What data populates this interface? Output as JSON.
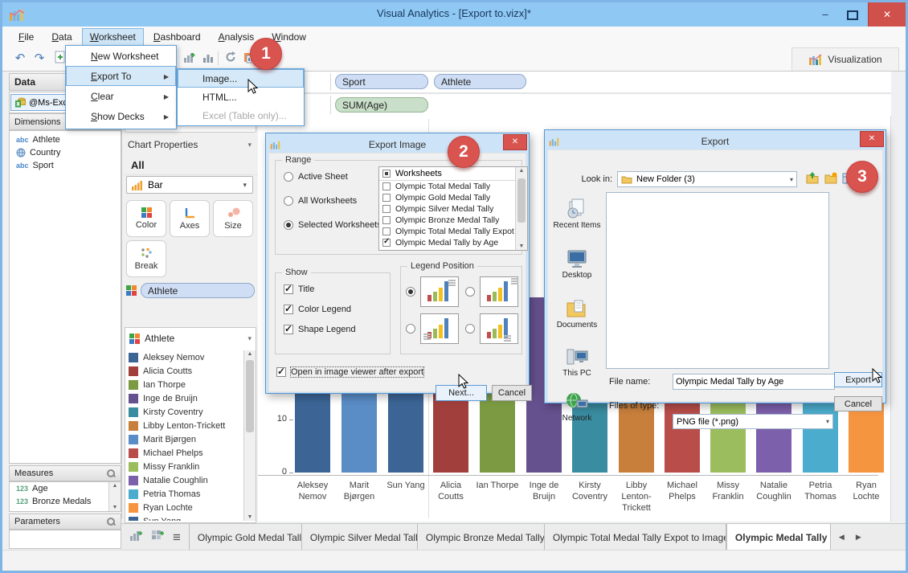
{
  "window": {
    "title": "Visual Analytics - [Export to.vizx]*"
  },
  "menu": {
    "items": [
      "File",
      "Data",
      "Worksheet",
      "Dashboard",
      "Analysis",
      "Window"
    ],
    "active": "Worksheet"
  },
  "worksheet_menu": {
    "items": [
      {
        "label": "New Worksheet",
        "submenu": false,
        "highlighted": false
      },
      {
        "label": "Export To",
        "submenu": true,
        "highlighted": true
      },
      {
        "label": "Clear",
        "submenu": true,
        "highlighted": false
      },
      {
        "label": "Show Decks",
        "submenu": true,
        "highlighted": false
      }
    ]
  },
  "export_submenu": {
    "items": [
      {
        "label": "Image...",
        "highlighted": true,
        "disabled": false
      },
      {
        "label": "HTML...",
        "highlighted": false,
        "disabled": false
      },
      {
        "label": "Excel (Table only)...",
        "highlighted": false,
        "disabled": true
      }
    ]
  },
  "toolbar": {
    "visualization_label": "Visualization"
  },
  "badges": [
    "1",
    "2",
    "3"
  ],
  "data_panel": {
    "title": "Data",
    "connection": "@Ms-Exc...",
    "dimensions": {
      "title": "Dimensions",
      "items": [
        {
          "type": "abc",
          "label": "Athlete"
        },
        {
          "type": "globe",
          "label": "Country"
        },
        {
          "type": "abc",
          "label": "Sport"
        }
      ]
    },
    "measures": {
      "title": "Measures",
      "items": [
        {
          "type": "123",
          "label": "Age"
        },
        {
          "type": "123",
          "label": "Bronze Medals"
        }
      ]
    },
    "parameters": {
      "title": "Parameters"
    }
  },
  "chart_properties": {
    "title": "Chart Properties",
    "scope": "All",
    "chart_type": "Bar",
    "buttons": [
      "Color",
      "Axes",
      "Size",
      "Break"
    ],
    "color_field": "Athlete",
    "legend": {
      "title": "Athlete",
      "items": [
        {
          "label": "Aleksey Nemov",
          "color": "#3c6596"
        },
        {
          "label": "Alicia Coutts",
          "color": "#a03f3c"
        },
        {
          "label": "Ian Thorpe",
          "color": "#7b9a42"
        },
        {
          "label": "Inge de Bruijn",
          "color": "#66518f"
        },
        {
          "label": "Kirsty Coventry",
          "color": "#3a8ca0"
        },
        {
          "label": "Libby Lenton-Trickett",
          "color": "#c87f3c"
        },
        {
          "label": "Marit Bjørgen",
          "color": "#5a8cc6"
        },
        {
          "label": "Michael Phelps",
          "color": "#b84d4a"
        },
        {
          "label": "Missy Franklin",
          "color": "#9cbd5e"
        },
        {
          "label": "Natalie Coughlin",
          "color": "#7d60ab"
        },
        {
          "label": "Petria Thomas",
          "color": "#4caccd"
        },
        {
          "label": "Ryan Lochte",
          "color": "#f6953f"
        },
        {
          "label": "Sun Yang",
          "color": "#3c6596"
        }
      ]
    }
  },
  "shelves": {
    "columns": [
      "Sport",
      "Athlete"
    ],
    "rows": [
      "SUM(Age)"
    ]
  },
  "chart_data": {
    "type": "bar",
    "categories": [
      "Aleksey Nemov",
      "Marit Bjørgen",
      "Sun Yang",
      "Alicia Coutts",
      "Ian Thorpe",
      "Inge de Bruijn",
      "Kirsty Coventry",
      "Libby Lenton-Trickett",
      "Michael Phelps",
      "Missy Franklin",
      "Natalie Coughlin",
      "Petria Thomas",
      "Ryan Lochte"
    ],
    "values": [
      28,
      30,
      27,
      26,
      30,
      33,
      28,
      27,
      31,
      26,
      29,
      27,
      30
    ],
    "colors": [
      "#3c6596",
      "#5a8cc6",
      "#3c6596",
      "#a03f3c",
      "#7b9a42",
      "#66518f",
      "#3a8ca0",
      "#c87f3c",
      "#b84d4a",
      "#9cbd5e",
      "#7d60ab",
      "#4caccd",
      "#f6953f"
    ],
    "y_ticks": [
      0,
      10
    ],
    "ylim": [
      0,
      35
    ],
    "group_separator_after": 3,
    "title": "",
    "xlabel": "",
    "ylabel": "SUM(Age)"
  },
  "bottom_tabs": {
    "tabs": [
      {
        "label": "Olympic Gold Medal Tally",
        "active": false
      },
      {
        "label": "Olympic Silver Medal Tally",
        "active": false
      },
      {
        "label": "Olympic Bronze Medal Tally",
        "active": false
      },
      {
        "label": "Olympic Total Medal Tally Expot to Image",
        "active": false
      },
      {
        "label": "Olympic Medal Tally by",
        "active": true
      }
    ]
  },
  "export_image_dialog": {
    "title": "Export Image",
    "range": {
      "label": "Range",
      "options": [
        {
          "label": "Active Sheet",
          "selected": false
        },
        {
          "label": "All Worksheets",
          "selected": false
        },
        {
          "label": "Selected Worksheets",
          "selected": true
        }
      ]
    },
    "worksheet_list": {
      "header": "Worksheets",
      "items": [
        {
          "label": "Olympic Total Medal Tally",
          "checked": false
        },
        {
          "label": "Olympic Gold Medal Tally",
          "checked": false
        },
        {
          "label": "Olympic Silver Medal Tally",
          "checked": false
        },
        {
          "label": "Olympic Bronze Medal Tally",
          "checked": false
        },
        {
          "label": "Olympic Total Medal Tally Expot to Image",
          "checked": false
        },
        {
          "label": "Olympic Medal Tally by Age",
          "checked": true
        }
      ]
    },
    "show": {
      "label": "Show",
      "options": [
        {
          "label": "Title",
          "checked": true
        },
        {
          "label": "Color Legend",
          "checked": true
        },
        {
          "label": "Shape Legend",
          "checked": true
        }
      ]
    },
    "legend_position": {
      "label": "Legend Position",
      "selected_index": 0
    },
    "open_after": {
      "label": "Open in image viewer after export",
      "checked": true
    },
    "buttons": {
      "next": "Next...",
      "cancel": "Cancel"
    }
  },
  "export_dialog": {
    "title": "Export",
    "look_in": {
      "label": "Look in:",
      "value": "New Folder (3)"
    },
    "places": [
      "Recent Items",
      "Desktop",
      "Documents",
      "This PC",
      "Network"
    ],
    "file_name": {
      "label": "File name:",
      "value": "Olympic Medal Tally by Age"
    },
    "file_type": {
      "label": "Files of type:",
      "value": "PNG file (*.png)"
    },
    "buttons": {
      "export": "Export",
      "cancel": "Cancel"
    }
  },
  "icons": {
    "chevron_down": "▾",
    "submenu_arrow": "▶",
    "scroll_up": "▲",
    "scroll_down": "▼",
    "tab_left": "◀",
    "tab_right": "▶",
    "check": "✓",
    "close": "✕",
    "minimize": "–",
    "undo": "↶",
    "redo": "↷",
    "hamburger": "≡"
  },
  "colors": {
    "titlebar": "#8fc8f3",
    "dialog_border": "#5596d0",
    "badge": "#d9534f",
    "pill_blue": "#cfdef5",
    "pill_green": "#c9dfc9",
    "selection": "#d6e9f8"
  }
}
